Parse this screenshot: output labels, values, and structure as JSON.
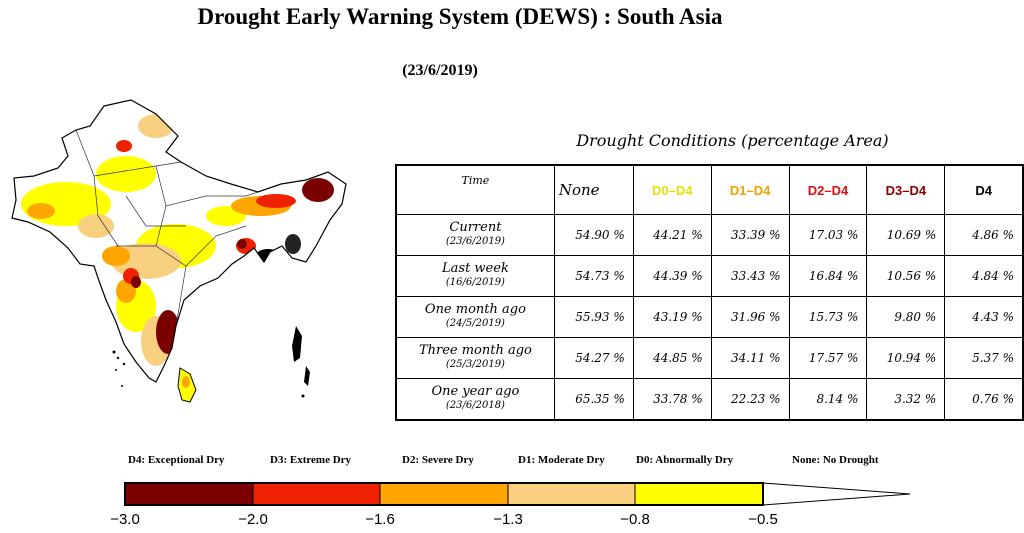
{
  "header": {
    "title": "Drought Early Warning System (DEWS) : South Asia",
    "date": "(23/6/2019)"
  },
  "table": {
    "caption": "Drought Conditions (percentage Area)",
    "columns": [
      {
        "label": "Time",
        "color": "#000000"
      },
      {
        "label": "None",
        "color": "#000000"
      },
      {
        "label": "D0–D4",
        "color": "#e8e000"
      },
      {
        "label": "D1–D4",
        "color": "#f2a000"
      },
      {
        "label": "D2–D4",
        "color": "#e01010"
      },
      {
        "label": "D3–D4",
        "color": "#8b0000"
      },
      {
        "label": "D4",
        "color": "#000000"
      }
    ],
    "rows": [
      {
        "label": "Current",
        "date": "(23/6/2019)",
        "values": [
          "54.90 %",
          "44.21 %",
          "33.39 %",
          "17.03 %",
          "10.69 %",
          "4.86 %"
        ]
      },
      {
        "label": "Last week",
        "date": "(16/6/2019)",
        "values": [
          "54.73 %",
          "44.39 %",
          "33.43 %",
          "16.84 %",
          "10.56 %",
          "4.84 %"
        ]
      },
      {
        "label": "One month ago",
        "date": "(24/5/2019)",
        "values": [
          "55.93 %",
          "43.19 %",
          "31.96 %",
          "15.73 %",
          "9.80 %",
          "4.43 %"
        ]
      },
      {
        "label": "Three month ago",
        "date": "(25/3/2019)",
        "values": [
          "54.27 %",
          "44.85 %",
          "34.11 %",
          "17.57 %",
          "10.94 %",
          "5.37 %"
        ]
      },
      {
        "label": "One year ago",
        "date": "(23/6/2018)",
        "values": [
          "65.35 %",
          "33.78 %",
          "22.23 %",
          "8.14 %",
          "3.32 %",
          "0.76 %"
        ]
      }
    ]
  },
  "legend": {
    "labels": [
      "D4: Exceptional Dry",
      "D3: Extreme Dry",
      "D2: Severe Dry",
      "D1: Moderate Dry",
      "D0: Abnormally Dry",
      "None: No Drought"
    ],
    "colors": [
      "#7a0000",
      "#ee2200",
      "#ffa500",
      "#f8d080",
      "#ffff00",
      "#ffffff"
    ],
    "ticks": [
      "−3.0",
      "−2.0",
      "−1.6",
      "−1.3",
      "−0.8",
      "−0.5"
    ]
  }
}
